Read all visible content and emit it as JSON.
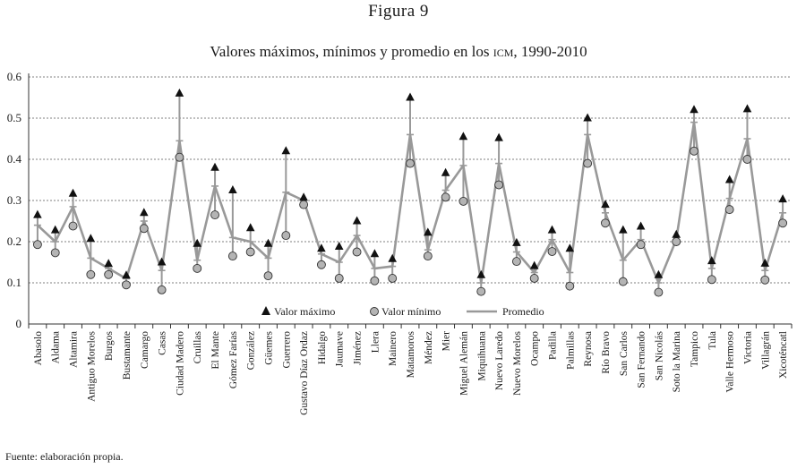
{
  "figure_label": "Figura 9",
  "title_parts": [
    "Valores máximos, mínimos y promedio en los ",
    "icm",
    ", 1990-2010"
  ],
  "source_note": "Fuente: elaboración propia.",
  "colors": {
    "line": "#999999",
    "marker_min_fill": "#b4b4b4",
    "marker_max": "#111111",
    "axis": "#333333",
    "grid": "#555555"
  },
  "chart_data": {
    "type": "line",
    "title": "Valores máximos, mínimos y promedio en los ICM, 1990-2010",
    "xlabel": "",
    "ylabel": "",
    "ylim": [
      0,
      0.6
    ],
    "yticks": [
      0,
      0.1,
      0.2,
      0.3,
      0.4,
      0.5,
      0.6
    ],
    "ytick_labels": [
      "0",
      "0.1",
      "0.2",
      "0.3",
      "0.4",
      "0.5",
      "0.6"
    ],
    "grid": "horizontal dotted",
    "legend_position": "bottom-left inside plot",
    "categories": [
      "Abasolo",
      "Aldama",
      "Altamira",
      "Antiguo Morelos",
      "Burgos",
      "Bustamante",
      "Camargo",
      "Casas",
      "Ciudad Madero",
      "Cruillas",
      "El Mante",
      "Gómez Farías",
      "González",
      "Güemes",
      "Guerrero",
      "Gustavo Díaz Ordaz",
      "Hidalgo",
      "Jaumave",
      "Jiménez",
      "Llera",
      "Mainero",
      "Matamoros",
      "Méndez",
      "Mier",
      "Miguel Alemán",
      "Miquihuana",
      "Nuevo Laredo",
      "Nuevo Morelos",
      "Ocampo",
      "Padilla",
      "Palmillas",
      "Reynosa",
      "Río Bravo",
      "San Carlos",
      "San Fernando",
      "San Nicolás",
      "Soto la Marina",
      "Tampico",
      "Tula",
      "Valle Hermoso",
      "Victoria",
      "Villagrán",
      "Xicoténcatl"
    ],
    "series": [
      {
        "name": "Valor máximo",
        "marker": "triangle",
        "values": [
          0.265,
          0.228,
          0.317,
          0.207,
          0.146,
          0.118,
          0.27,
          0.15,
          0.56,
          0.195,
          0.38,
          0.325,
          0.233,
          0.195,
          0.42,
          0.307,
          0.183,
          0.188,
          0.25,
          0.17,
          0.158,
          0.55,
          0.222,
          0.367,
          0.455,
          0.119,
          0.452,
          0.197,
          0.141,
          0.228,
          0.183,
          0.5,
          0.29,
          0.228,
          0.237,
          0.119,
          0.217,
          0.52,
          0.153,
          0.35,
          0.522,
          0.147,
          0.303
        ]
      },
      {
        "name": "Valor mínimo",
        "marker": "circle",
        "values": [
          0.193,
          0.173,
          0.238,
          0.12,
          0.12,
          0.095,
          0.232,
          0.083,
          0.405,
          0.135,
          0.265,
          0.165,
          0.175,
          0.117,
          0.215,
          0.29,
          0.144,
          0.111,
          0.175,
          0.105,
          0.111,
          0.39,
          0.165,
          0.308,
          0.298,
          0.079,
          0.338,
          0.152,
          0.111,
          0.176,
          0.092,
          0.39,
          0.245,
          0.103,
          0.193,
          0.077,
          0.2,
          0.42,
          0.108,
          0.278,
          0.4,
          0.107,
          0.245
        ]
      },
      {
        "name": "Promedio",
        "marker": "line",
        "values": [
          0.24,
          0.2,
          0.285,
          0.16,
          0.135,
          0.11,
          0.25,
          0.13,
          0.445,
          0.155,
          0.335,
          0.21,
          0.2,
          0.16,
          0.32,
          0.3,
          0.17,
          0.15,
          0.215,
          0.135,
          0.14,
          0.46,
          0.18,
          0.325,
          0.385,
          0.1,
          0.39,
          0.175,
          0.125,
          0.205,
          0.125,
          0.46,
          0.27,
          0.155,
          0.205,
          0.1,
          0.205,
          0.49,
          0.135,
          0.305,
          0.45,
          0.13,
          0.27
        ]
      }
    ]
  }
}
